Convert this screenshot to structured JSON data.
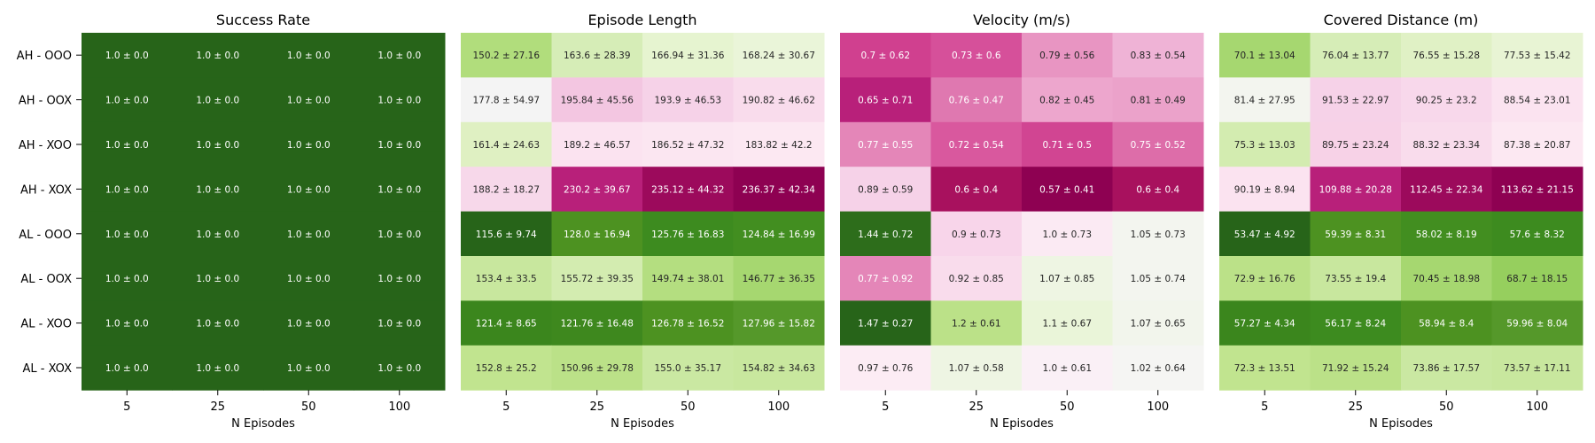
{
  "chart_data": {
    "type": "heatmap",
    "row_labels": [
      "AH - OOO",
      "AH - OOX",
      "AH - XOO",
      "AH - XOX",
      "AL - OOO",
      "AL - OOX",
      "AL - XOO",
      "AL - XOX"
    ],
    "x_categories": [
      "5",
      "25",
      "50",
      "100"
    ],
    "xlabel": "N Episodes",
    "panels": [
      {
        "title": "Success Rate",
        "cells": [
          [
            "1.0 ± 0.0",
            "1.0 ± 0.0",
            "1.0 ± 0.0",
            "1.0 ± 0.0"
          ],
          [
            "1.0 ± 0.0",
            "1.0 ± 0.0",
            "1.0 ± 0.0",
            "1.0 ± 0.0"
          ],
          [
            "1.0 ± 0.0",
            "1.0 ± 0.0",
            "1.0 ± 0.0",
            "1.0 ± 0.0"
          ],
          [
            "1.0 ± 0.0",
            "1.0 ± 0.0",
            "1.0 ± 0.0",
            "1.0 ± 0.0"
          ],
          [
            "1.0 ± 0.0",
            "1.0 ± 0.0",
            "1.0 ± 0.0",
            "1.0 ± 0.0"
          ],
          [
            "1.0 ± 0.0",
            "1.0 ± 0.0",
            "1.0 ± 0.0",
            "1.0 ± 0.0"
          ],
          [
            "1.0 ± 0.0",
            "1.0 ± 0.0",
            "1.0 ± 0.0",
            "1.0 ± 0.0"
          ],
          [
            "1.0 ± 0.0",
            "1.0 ± 0.0",
            "1.0 ± 0.0",
            "1.0 ± 0.0"
          ]
        ],
        "colors": [
          [
            "#276419",
            "#276419",
            "#276419",
            "#276419"
          ],
          [
            "#276419",
            "#276419",
            "#276419",
            "#276419"
          ],
          [
            "#276419",
            "#276419",
            "#276419",
            "#276419"
          ],
          [
            "#276419",
            "#276419",
            "#276419",
            "#276419"
          ],
          [
            "#276419",
            "#276419",
            "#276419",
            "#276419"
          ],
          [
            "#276419",
            "#276419",
            "#276419",
            "#276419"
          ],
          [
            "#276419",
            "#276419",
            "#276419",
            "#276419"
          ],
          [
            "#276419",
            "#276419",
            "#276419",
            "#276419"
          ]
        ],
        "text_colors": [
          [
            "#ffffff",
            "#ffffff",
            "#ffffff",
            "#ffffff"
          ],
          [
            "#ffffff",
            "#ffffff",
            "#ffffff",
            "#ffffff"
          ],
          [
            "#ffffff",
            "#ffffff",
            "#ffffff",
            "#ffffff"
          ],
          [
            "#ffffff",
            "#ffffff",
            "#ffffff",
            "#ffffff"
          ],
          [
            "#ffffff",
            "#ffffff",
            "#ffffff",
            "#ffffff"
          ],
          [
            "#ffffff",
            "#ffffff",
            "#ffffff",
            "#ffffff"
          ],
          [
            "#ffffff",
            "#ffffff",
            "#ffffff",
            "#ffffff"
          ],
          [
            "#ffffff",
            "#ffffff",
            "#ffffff",
            "#ffffff"
          ]
        ]
      },
      {
        "title": "Episode Length",
        "cells": [
          [
            "150.2 ± 27.16",
            "163.6 ± 28.39",
            "166.94 ± 31.36",
            "168.24 ± 30.67"
          ],
          [
            "177.8 ± 54.97",
            "195.84 ± 45.56",
            "193.9 ± 46.53",
            "190.82 ± 46.62"
          ],
          [
            "161.4 ± 24.63",
            "189.2 ± 46.57",
            "186.52 ± 47.32",
            "183.82 ± 42.2"
          ],
          [
            "188.2 ± 18.27",
            "230.2 ± 39.67",
            "235.12 ± 44.32",
            "236.37 ± 42.34"
          ],
          [
            "115.6 ± 9.74",
            "128.0 ± 16.94",
            "125.76 ± 16.83",
            "124.84 ± 16.99"
          ],
          [
            "153.4 ± 33.5",
            "155.72 ± 39.35",
            "149.74 ± 38.01",
            "146.77 ± 36.35"
          ],
          [
            "121.4 ± 8.65",
            "121.76 ± 16.48",
            "126.78 ± 16.52",
            "127.96 ± 15.82"
          ],
          [
            "152.8 ± 25.2",
            "150.96 ± 29.78",
            "155.0 ± 35.17",
            "154.82 ± 34.63"
          ]
        ],
        "colors": [
          [
            "#b1dd7c",
            "#d6edb7",
            "#e6f4d0",
            "#eaf5d9"
          ],
          [
            "#f4f4f4",
            "#f3c6e1",
            "#f6d2e8",
            "#f9dcec"
          ],
          [
            "#dff0c2",
            "#fbe3f0",
            "#fbe6f1",
            "#fce8f2"
          ],
          [
            "#f7d8ea",
            "#b8207a",
            "#9c0a5c",
            "#8e0152"
          ],
          [
            "#276419",
            "#4d9221",
            "#3d8b1f",
            "#428e20"
          ],
          [
            "#c8e79e",
            "#d3ecb0",
            "#b4de80",
            "#a6d770"
          ],
          [
            "#3b861d",
            "#3e881e",
            "#4d9221",
            "#55982a"
          ],
          [
            "#c1e48f",
            "#bbe188",
            "#cae8a2",
            "#c8e79e"
          ]
        ],
        "text_colors": [
          [
            "#262626",
            "#262626",
            "#262626",
            "#262626"
          ],
          [
            "#262626",
            "#262626",
            "#262626",
            "#262626"
          ],
          [
            "#262626",
            "#262626",
            "#262626",
            "#262626"
          ],
          [
            "#262626",
            "#ffffff",
            "#ffffff",
            "#ffffff"
          ],
          [
            "#ffffff",
            "#ffffff",
            "#ffffff",
            "#ffffff"
          ],
          [
            "#262626",
            "#262626",
            "#262626",
            "#262626"
          ],
          [
            "#ffffff",
            "#ffffff",
            "#ffffff",
            "#ffffff"
          ],
          [
            "#262626",
            "#262626",
            "#262626",
            "#262626"
          ]
        ]
      },
      {
        "title": "Velocity (m/s)",
        "cells": [
          [
            "0.7 ± 0.62",
            "0.73 ± 0.6",
            "0.79 ± 0.56",
            "0.83 ± 0.54"
          ],
          [
            "0.65 ± 0.71",
            "0.76 ± 0.47",
            "0.82 ± 0.45",
            "0.81 ± 0.49"
          ],
          [
            "0.77 ± 0.55",
            "0.72 ± 0.54",
            "0.71 ± 0.5",
            "0.75 ± 0.52"
          ],
          [
            "0.89 ± 0.59",
            "0.6 ± 0.4",
            "0.57 ± 0.41",
            "0.6 ± 0.4"
          ],
          [
            "1.44 ± 0.72",
            "0.9 ± 0.73",
            "1.0 ± 0.73",
            "1.05 ± 0.73"
          ],
          [
            "0.77 ± 0.92",
            "0.92 ± 0.85",
            "1.07 ± 0.85",
            "1.05 ± 0.74"
          ],
          [
            "1.47 ± 0.27",
            "1.2 ± 0.61",
            "1.1 ± 0.67",
            "1.07 ± 0.65"
          ],
          [
            "0.97 ± 0.76",
            "1.07 ± 0.58",
            "1.0 ± 0.61",
            "1.02 ± 0.64"
          ]
        ],
        "colors": [
          [
            "#d0408f",
            "#d6509a",
            "#e895c2",
            "#efb3d6"
          ],
          [
            "#b8207a",
            "#df78b0",
            "#eda6cd",
            "#eba2ca"
          ],
          [
            "#e486b8",
            "#d9589e",
            "#d14592",
            "#dd6da9"
          ],
          [
            "#f6d2e8",
            "#a8115e",
            "#8e0152",
            "#a8115e"
          ],
          [
            "#2d6d1b",
            "#f8d5ea",
            "#fbeaf3",
            "#f3f5ef"
          ],
          [
            "#e486b8",
            "#f9dcec",
            "#eef5e3",
            "#f3f5ef"
          ],
          [
            "#276419",
            "#bbe188",
            "#eaf5d9",
            "#f2f5ec"
          ],
          [
            "#fcecf4",
            "#eef5e3",
            "#faf0f6",
            "#f5f5f3"
          ]
        ],
        "text_colors": [
          [
            "#ffffff",
            "#ffffff",
            "#262626",
            "#262626"
          ],
          [
            "#ffffff",
            "#ffffff",
            "#262626",
            "#262626"
          ],
          [
            "#ffffff",
            "#ffffff",
            "#ffffff",
            "#ffffff"
          ],
          [
            "#262626",
            "#ffffff",
            "#ffffff",
            "#ffffff"
          ],
          [
            "#ffffff",
            "#262626",
            "#262626",
            "#262626"
          ],
          [
            "#ffffff",
            "#262626",
            "#262626",
            "#262626"
          ],
          [
            "#ffffff",
            "#262626",
            "#262626",
            "#262626"
          ],
          [
            "#262626",
            "#262626",
            "#262626",
            "#262626"
          ]
        ]
      },
      {
        "title": "Covered Distance (m)",
        "cells": [
          [
            "70.1 ± 13.04",
            "76.04 ± 13.77",
            "76.55 ± 15.28",
            "77.53 ± 15.42"
          ],
          [
            "81.4 ± 27.95",
            "91.53 ± 22.97",
            "90.25 ± 23.2",
            "88.54 ± 23.01"
          ],
          [
            "75.3 ± 13.03",
            "89.75 ± 23.24",
            "88.32 ± 23.34",
            "87.38 ± 20.87"
          ],
          [
            "90.19 ± 8.94",
            "109.88 ± 20.28",
            "112.45 ± 22.34",
            "113.62 ± 21.15"
          ],
          [
            "53.47 ± 4.92",
            "59.39 ± 8.31",
            "58.02 ± 8.19",
            "57.6 ± 8.32"
          ],
          [
            "72.9 ± 16.76",
            "73.55 ± 19.4",
            "70.45 ± 18.98",
            "68.7 ± 18.15"
          ],
          [
            "57.27 ± 4.34",
            "56.17 ± 8.24",
            "58.94 ± 8.4",
            "59.96 ± 8.04"
          ],
          [
            "72.3 ± 13.51",
            "71.92 ± 15.24",
            "73.86 ± 17.57",
            "73.57 ± 17.11"
          ]
        ],
        "colors": [
          [
            "#a6d770",
            "#d6edb7",
            "#e0f1c5",
            "#e8f4d4"
          ],
          [
            "#f3f5ef",
            "#f6d2e8",
            "#f8d8eb",
            "#fbe3f0"
          ],
          [
            "#d3ecb0",
            "#f7d2e7",
            "#f9dcec",
            "#fce8f2"
          ],
          [
            "#fbe3f0",
            "#b8207a",
            "#9c0a5c",
            "#8e0152"
          ],
          [
            "#276419",
            "#4d9221",
            "#428e20",
            "#3d8b1f"
          ],
          [
            "#bbe188",
            "#c8e79e",
            "#a6d770",
            "#96cf5e"
          ],
          [
            "#3b861d",
            "#3d8b1f",
            "#4d9221",
            "#55982a"
          ],
          [
            "#c1e48f",
            "#bbe188",
            "#cae8a2",
            "#c8e79e"
          ]
        ],
        "text_colors": [
          [
            "#262626",
            "#262626",
            "#262626",
            "#262626"
          ],
          [
            "#262626",
            "#262626",
            "#262626",
            "#262626"
          ],
          [
            "#262626",
            "#262626",
            "#262626",
            "#262626"
          ],
          [
            "#262626",
            "#ffffff",
            "#ffffff",
            "#ffffff"
          ],
          [
            "#ffffff",
            "#ffffff",
            "#ffffff",
            "#ffffff"
          ],
          [
            "#262626",
            "#262626",
            "#262626",
            "#262626"
          ],
          [
            "#ffffff",
            "#ffffff",
            "#ffffff",
            "#ffffff"
          ],
          [
            "#262626",
            "#262626",
            "#262626",
            "#262626"
          ]
        ]
      }
    ]
  }
}
